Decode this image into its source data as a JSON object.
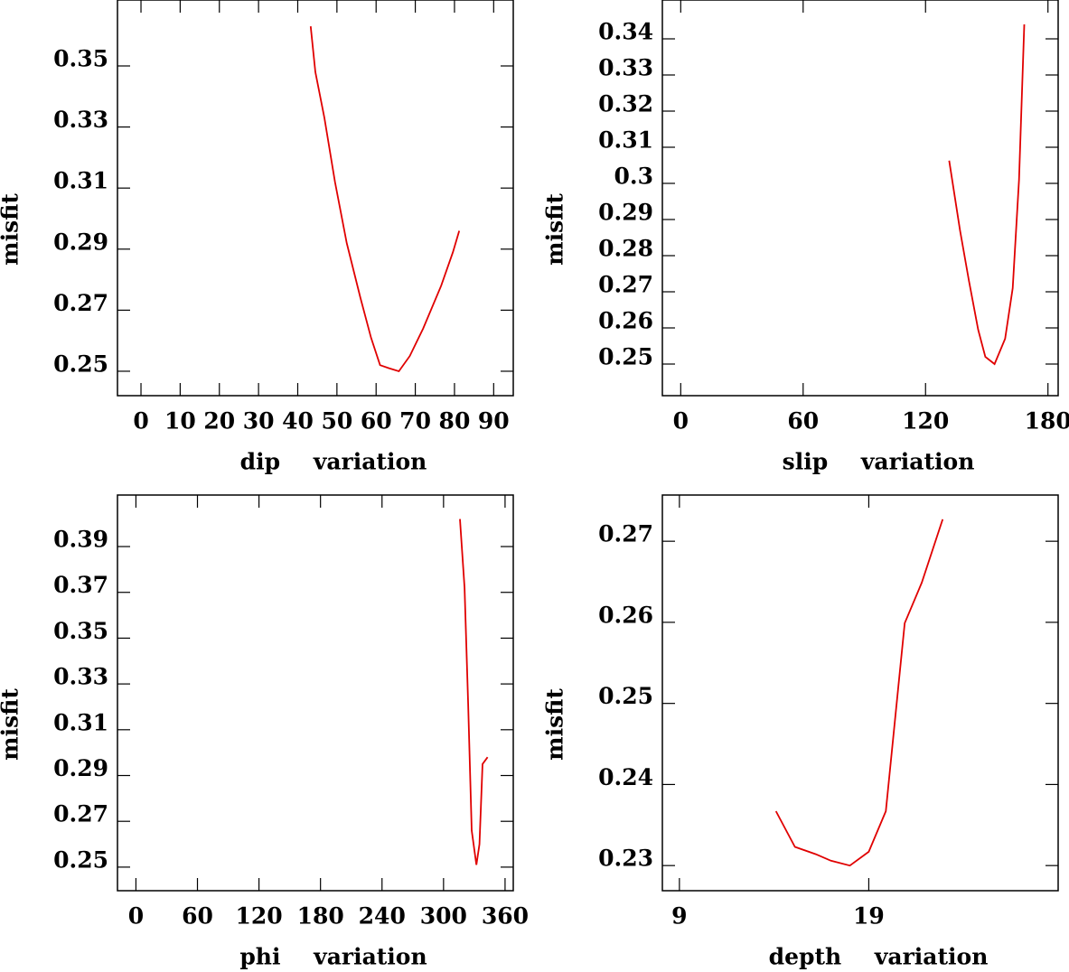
{
  "chart_data": [
    {
      "type": "line",
      "xlabel": "dip variation",
      "ylabel": "misfit",
      "color": "#e00000",
      "x": [
        43.3,
        44.5,
        46.8,
        49.5,
        52.5,
        56,
        58.7,
        61,
        63.3,
        65.8,
        68.6,
        72,
        76.6,
        79.6,
        81.2
      ],
      "values": [
        0.363,
        0.348,
        0.333,
        0.312,
        0.292,
        0.274,
        0.261,
        0.252,
        0.251,
        0.25,
        0.255,
        0.264,
        0.278,
        0.289,
        0.296
      ],
      "xlim": [
        -6,
        95
      ],
      "xticks": [
        0,
        10,
        20,
        30,
        40,
        50,
        60,
        70,
        80,
        90
      ],
      "ylim": [
        0.242,
        0.3716
      ],
      "yticks": [
        0.25,
        0.27,
        0.29,
        0.31,
        0.33,
        0.35
      ]
    },
    {
      "type": "line",
      "xlabel": "slip variation",
      "ylabel": "misfit",
      "color": "#e00000",
      "x": [
        131.6,
        136.9,
        141.3,
        145.8,
        149.3,
        153.8,
        159,
        162.7,
        165.8,
        168.4
      ],
      "values": [
        0.3063,
        0.287,
        0.273,
        0.2595,
        0.252,
        0.25,
        0.257,
        0.271,
        0.301,
        0.344
      ],
      "xlim": [
        -9,
        185
      ],
      "xticks": [
        0,
        60,
        120,
        180
      ],
      "ylim": [
        0.24125,
        0.35075
      ],
      "yticks": [
        0.25,
        0.26,
        0.27,
        0.28,
        0.29,
        0.3,
        0.31,
        0.32,
        0.33,
        0.34
      ]
    },
    {
      "type": "line",
      "xlabel": "phi variation",
      "ylabel": "misfit",
      "color": "#e00000",
      "x": [
        316,
        320.5,
        324,
        327.5,
        332,
        335,
        338,
        343
      ],
      "values": [
        0.402,
        0.372,
        0.321,
        0.266,
        0.251,
        0.26,
        0.295,
        0.298
      ],
      "xlim": [
        -18,
        368
      ],
      "xticks": [
        0,
        60,
        120,
        180,
        240,
        300,
        360
      ],
      "ylim": [
        0.2397,
        0.4125
      ],
      "yticks": [
        0.25,
        0.27,
        0.29,
        0.31,
        0.33,
        0.35,
        0.37,
        0.39
      ]
    },
    {
      "type": "line",
      "xlabel": "depth variation",
      "ylabel": "misfit",
      "color": "#e00000",
      "x": [
        14.1,
        15.1,
        16.2,
        17,
        18,
        19,
        19.9,
        20.9,
        21.8,
        22.9
      ],
      "values": [
        0.2367,
        0.2323,
        0.2314,
        0.2306,
        0.23,
        0.2317,
        0.2367,
        0.2599,
        0.2649,
        0.2727
      ],
      "xlim": [
        8.1,
        29
      ],
      "xticks": [
        9,
        19
      ],
      "ylim": [
        0.2269,
        0.2757
      ],
      "yticks": [
        0.23,
        0.24,
        0.25,
        0.26,
        0.27
      ]
    }
  ]
}
